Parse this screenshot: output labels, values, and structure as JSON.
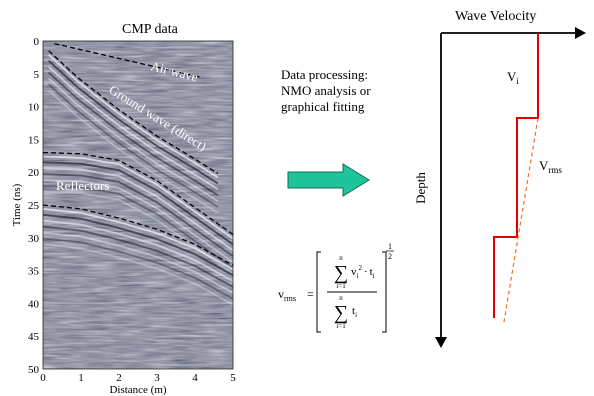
{
  "cmp_panel": {
    "title": "CMP data",
    "y_axis_label": "Time (ns)",
    "x_axis_label": "Distance (m)",
    "y_ticks": [
      "0",
      "5",
      "10",
      "15",
      "20",
      "25",
      "30",
      "35",
      "40",
      "45",
      "50"
    ],
    "x_ticks": [
      "0",
      "1",
      "2",
      "3",
      "4",
      "5"
    ],
    "x_range": [
      0,
      5
    ],
    "y_range": [
      0,
      50
    ],
    "annotations": {
      "air_wave": "Air wave",
      "ground_wave": "Ground wave (direct)",
      "reflectors": "Reflectors"
    },
    "curves": {
      "air_wave": [
        [
          0.3,
          0.4
        ],
        [
          4.2,
          5.6
        ]
      ],
      "ground_wave": [
        [
          0.15,
          1.5
        ],
        [
          0.9,
          5.5
        ],
        [
          2.0,
          10.5
        ],
        [
          3.0,
          14.5
        ],
        [
          4.0,
          18.0
        ],
        [
          4.6,
          20.2
        ]
      ],
      "reflector_upper": [
        [
          0.0,
          17.0
        ],
        [
          1.0,
          17.2
        ],
        [
          2.0,
          18.2
        ],
        [
          3.0,
          21.3
        ],
        [
          4.0,
          25.4
        ],
        [
          5.0,
          29.5
        ]
      ],
      "reflector_lower": [
        [
          0.0,
          25.0
        ],
        [
          1.0,
          25.6
        ],
        [
          2.0,
          27.0
        ],
        [
          3.0,
          28.7
        ],
        [
          4.0,
          31.0
        ],
        [
          5.0,
          34.2
        ]
      ]
    }
  },
  "processing": {
    "line1": "Data processing:",
    "line2": "NMO analysis or",
    "line3": "graphical fitting",
    "arrow_color": "#1fc49a"
  },
  "formula": {
    "lhs": "v",
    "lhs_sub": "rms",
    "sum_lower": "i=1",
    "sum_upper": "n",
    "num_term": "v",
    "num_sub": "i",
    "num_sup": "2",
    "num_dot": "·",
    "num_t": "t",
    "num_t_sub": "i",
    "den_t": "t",
    "den_t_sub": "i",
    "exp_num": "1",
    "exp_den": "2",
    "equals": "="
  },
  "velocity_diagram": {
    "x_axis_label": "Wave Velocity",
    "y_axis_label": "Depth",
    "vi_label": "V",
    "vi_sub": "i",
    "vrms_label": "V",
    "vrms_sub": "rms",
    "interval_color": "#e00000",
    "rms_color": "#f07030"
  }
}
